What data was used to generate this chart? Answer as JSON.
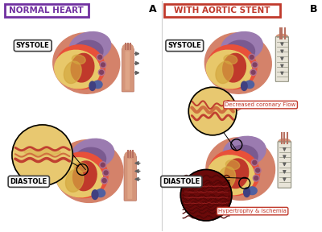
{
  "bg_color": "#ffffff",
  "panel_A_title": "NORMAL HEART",
  "panel_A_label": "A",
  "panel_B_title": "WITH AORTIC STENT",
  "panel_B_label": "B",
  "panel_A_title_box_color": "#7030a0",
  "panel_B_title_box_color": "#c0392b",
  "systole_label": "SYSTOLE",
  "diastole_label": "DIASTOLE",
  "annotation_coronary": "Decreased coronary Flow",
  "annotation_hypertrophy": "Hypertrophy & Ischemia",
  "heart_base_color": "#d4826a",
  "heart_dark_red": "#c0392b",
  "heart_bright_red": "#e8503a",
  "heart_yellow": "#e8c86a",
  "heart_yellow2": "#d4a840",
  "heart_purple": "#9b7bb0",
  "heart_purple2": "#7a5a90",
  "aorta_color": "#d4957a",
  "aorta_dark": "#b87060",
  "aorta_light": "#e8b090",
  "blue_vessel": "#5060a0",
  "stent_bg": "#e8e4d8",
  "stent_line": "#a0a090",
  "arrow_dark": "#606060",
  "arrow_med": "#808080",
  "circle_yellow_bg": "#e8c870",
  "circle_yellow_bg2": "#d4a840",
  "circle_dark_red_bg": "#6b0a0a",
  "circle_dark_red2": "#8b1515",
  "vessel_red": "#c04030",
  "vessel_orange": "#d07040",
  "label_bg": "#f8f8f8",
  "annot_bg": "#fef8f8",
  "annot_red": "#c0392b",
  "divider": "#d0d0d0"
}
